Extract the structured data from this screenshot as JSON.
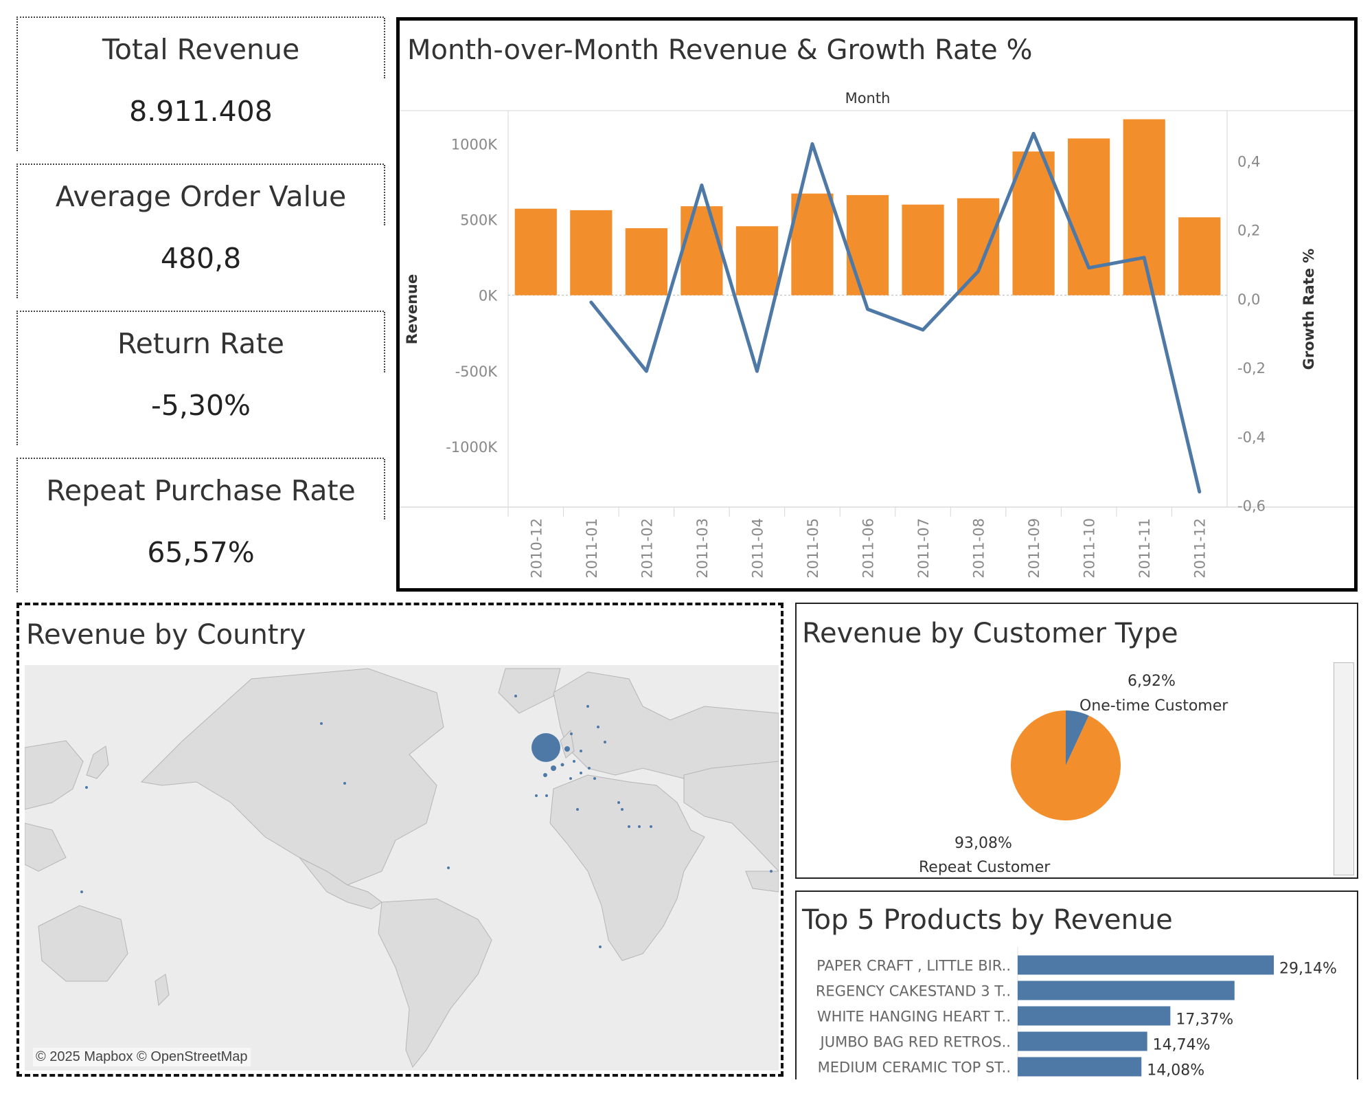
{
  "kpis": [
    {
      "title": "Total Revenue",
      "value": "8.911.408"
    },
    {
      "title": "Average Order Value",
      "value": "480,8"
    },
    {
      "title": "Return Rate",
      "value": "-5,30%"
    },
    {
      "title": "Repeat Purchase Rate",
      "value": "65,57%"
    }
  ],
  "mom_chart": {
    "title": "Month-over-Month Revenue & Growth Rate %"
  },
  "country_map": {
    "title": "Revenue by Country",
    "credit": "© 2025 Mapbox © OpenStreetMap"
  },
  "customer_type": {
    "title": "Revenue by Customer Type"
  },
  "top_products": {
    "title": "Top 5 Products by Revenue"
  },
  "colors": {
    "bar_orange": "#f28e2b",
    "line_blue": "#4e79a7",
    "bar_blue": "#4e79a7",
    "map_land": "#dcdcdc",
    "map_water": "#ececec"
  },
  "chart_data": [
    {
      "type": "bar",
      "title": "Month-over-Month Revenue & Growth Rate %",
      "xlabel": "Month",
      "ylabel": "Revenue",
      "ylabel_right": "Growth Rate %",
      "categories": [
        "2010-12",
        "2011-01",
        "2011-02",
        "2011-03",
        "2011-04",
        "2011-05",
        "2011-06",
        "2011-07",
        "2011-08",
        "2011-09",
        "2011-10",
        "2011-11",
        "2011-12"
      ],
      "series": [
        {
          "name": "Revenue",
          "type": "bar",
          "values": [
            572000,
            562000,
            443000,
            588000,
            456000,
            672000,
            662000,
            599000,
            641000,
            950000,
            1036000,
            1163000,
            515000
          ]
        },
        {
          "name": "Growth Rate %",
          "type": "line",
          "axis": "right",
          "values": [
            null,
            -0.01,
            -0.21,
            0.33,
            -0.21,
            0.45,
            -0.03,
            -0.09,
            0.08,
            0.48,
            0.09,
            0.12,
            -0.56
          ]
        }
      ],
      "ylim": [
        -1400000,
        1220000
      ],
      "yticks": [
        -1000000,
        -500000,
        0,
        500000,
        1000000
      ],
      "ytick_labels": [
        "-1000K",
        "-500K",
        "0K",
        "500K",
        "1000K"
      ],
      "ylim_right": [
        -0.6045,
        0.5465
      ],
      "yticks_right": [
        -0.6,
        -0.4,
        -0.2,
        0.0,
        0.2,
        0.4
      ],
      "ytick_labels_right": [
        "-0,6",
        "-0,4",
        "-0,2",
        "0,0",
        "0,2",
        "0,4"
      ],
      "grid": true
    },
    {
      "type": "pie",
      "title": "Revenue by Customer Type",
      "slices": [
        {
          "label": "One-time Customer",
          "value": 6.92,
          "display": "6,92%"
        },
        {
          "label": "Repeat Customer",
          "value": 93.08,
          "display": "93,08%"
        }
      ]
    },
    {
      "type": "bar",
      "orientation": "horizontal",
      "title": "Top 5 Products by Revenue",
      "categories": [
        "PAPER CRAFT , LITTLE BIR..",
        "REGENCY CAKESTAND 3 T..",
        "WHITE HANGING HEART T..",
        "JUMBO BAG RED RETROS..",
        "MEDIUM CERAMIC TOP ST.."
      ],
      "values": [
        29.14,
        24.67,
        17.37,
        14.74,
        14.08
      ],
      "value_labels": [
        "29,14%",
        "",
        "17,37%",
        "14,74%",
        "14,08%"
      ],
      "xlim": [
        0,
        29.14
      ]
    }
  ]
}
